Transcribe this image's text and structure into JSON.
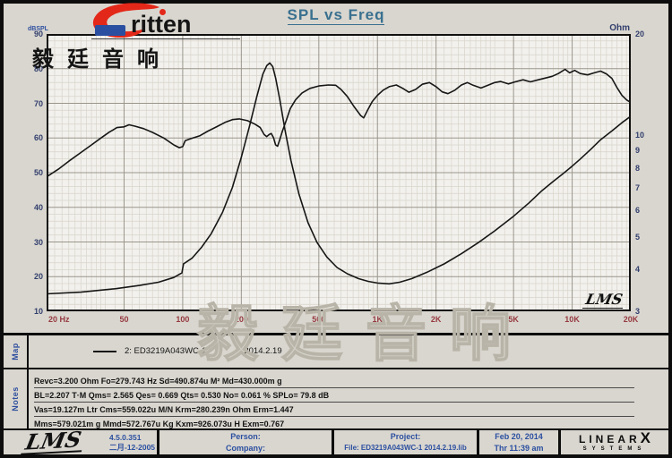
{
  "title": "SPL vs Freq",
  "logo": {
    "brand": "ritten",
    "cn": "毅廷音响"
  },
  "watermark": "毅廷音响",
  "plot_logo": "LMS",
  "chart_data": {
    "type": "line",
    "title": "SPL vs Freq",
    "x_axis": {
      "scale": "log",
      "min": 20,
      "max": 20000,
      "unit": "Hz",
      "ticks": [
        {
          "v": 20,
          "label": "20 Hz"
        },
        {
          "v": 50,
          "label": "50"
        },
        {
          "v": 100,
          "label": "100"
        },
        {
          "v": 200,
          "label": "200"
        },
        {
          "v": 500,
          "label": "500"
        },
        {
          "v": 1000,
          "label": "1K"
        },
        {
          "v": 2000,
          "label": "2K"
        },
        {
          "v": 5000,
          "label": "5K"
        },
        {
          "v": 10000,
          "label": "10K"
        },
        {
          "v": 20000,
          "label": "20K"
        }
      ]
    },
    "y_left": {
      "label": "dBSPL",
      "scale": "linear",
      "min": 10,
      "max": 90,
      "major_step": 10,
      "minor_step": 2,
      "ticks": [
        90,
        80,
        70,
        60,
        50,
        40,
        30,
        20,
        10
      ]
    },
    "y_right": {
      "label": "Ohm",
      "scale": "log",
      "min": 3,
      "max": 20,
      "ticks": [
        20,
        10,
        9,
        8,
        7,
        6,
        5,
        4,
        3
      ]
    },
    "grid": true,
    "legend": {
      "position": "map-panel",
      "entries": [
        "2: ED3219A043WC-1  2014.2.19"
      ]
    },
    "series": [
      {
        "name": "SPL",
        "axis": "left",
        "color": "#161616",
        "points": [
          [
            20,
            48.8
          ],
          [
            23,
            51
          ],
          [
            26,
            53.3
          ],
          [
            30,
            55.8
          ],
          [
            34,
            58
          ],
          [
            38,
            60
          ],
          [
            42,
            61.7
          ],
          [
            46,
            63
          ],
          [
            50,
            63.2
          ],
          [
            53,
            63.8
          ],
          [
            57,
            63.4
          ],
          [
            63,
            62.7
          ],
          [
            70,
            61.6
          ],
          [
            80,
            60
          ],
          [
            90,
            58
          ],
          [
            96,
            57.2
          ],
          [
            100,
            57.5
          ],
          [
            103,
            59.2
          ],
          [
            110,
            59.8
          ],
          [
            122,
            60.6
          ],
          [
            135,
            62
          ],
          [
            150,
            63.3
          ],
          [
            165,
            64.5
          ],
          [
            180,
            65.3
          ],
          [
            195,
            65.5
          ],
          [
            215,
            65
          ],
          [
            235,
            64
          ],
          [
            250,
            63
          ],
          [
            262,
            61
          ],
          [
            270,
            60.4
          ],
          [
            278,
            61
          ],
          [
            285,
            61.3
          ],
          [
            293,
            60
          ],
          [
            300,
            58
          ],
          [
            307,
            57.6
          ],
          [
            315,
            59.5
          ],
          [
            325,
            62
          ],
          [
            340,
            65
          ],
          [
            357,
            68.5
          ],
          [
            380,
            71
          ],
          [
            410,
            73
          ],
          [
            450,
            74.3
          ],
          [
            500,
            75
          ],
          [
            560,
            75.3
          ],
          [
            610,
            75.2
          ],
          [
            650,
            74
          ],
          [
            700,
            72
          ],
          [
            760,
            69
          ],
          [
            820,
            66.5
          ],
          [
            850,
            65.8
          ],
          [
            890,
            68
          ],
          [
            940,
            70.5
          ],
          [
            1000,
            72.3
          ],
          [
            1070,
            73.8
          ],
          [
            1150,
            74.8
          ],
          [
            1250,
            75.3
          ],
          [
            1350,
            74.3
          ],
          [
            1450,
            73.2
          ],
          [
            1570,
            74
          ],
          [
            1700,
            75.5
          ],
          [
            1850,
            76
          ],
          [
            2000,
            74.8
          ],
          [
            2150,
            73.3
          ],
          [
            2300,
            72.8
          ],
          [
            2500,
            73.8
          ],
          [
            2700,
            75.3
          ],
          [
            2900,
            76
          ],
          [
            3100,
            75.2
          ],
          [
            3400,
            74.4
          ],
          [
            3700,
            75.2
          ],
          [
            4000,
            76
          ],
          [
            4300,
            76.3
          ],
          [
            4700,
            75.6
          ],
          [
            5100,
            76.2
          ],
          [
            5600,
            76.8
          ],
          [
            6100,
            76.2
          ],
          [
            6700,
            76.8
          ],
          [
            7300,
            77.3
          ],
          [
            7900,
            77.8
          ],
          [
            8500,
            78.6
          ],
          [
            9200,
            79.8
          ],
          [
            9700,
            78.8
          ],
          [
            10300,
            79.5
          ],
          [
            11000,
            78.6
          ],
          [
            12000,
            78.2
          ],
          [
            13000,
            78.8
          ],
          [
            14000,
            79.3
          ],
          [
            15000,
            78.5
          ],
          [
            16000,
            77.2
          ],
          [
            17000,
            74.5
          ],
          [
            18000,
            72.3
          ],
          [
            19000,
            71
          ],
          [
            20000,
            70.2
          ]
        ]
      },
      {
        "name": "Impedance",
        "axis": "right",
        "color": "#161616",
        "points": [
          [
            20,
            3.38
          ],
          [
            30,
            3.42
          ],
          [
            45,
            3.5
          ],
          [
            60,
            3.58
          ],
          [
            75,
            3.66
          ],
          [
            90,
            3.78
          ],
          [
            99,
            3.9
          ],
          [
            101,
            4.15
          ],
          [
            112,
            4.32
          ],
          [
            125,
            4.65
          ],
          [
            140,
            5.1
          ],
          [
            160,
            5.9
          ],
          [
            180,
            7
          ],
          [
            200,
            8.6
          ],
          [
            220,
            10.6
          ],
          [
            240,
            13
          ],
          [
            258,
            15.2
          ],
          [
            270,
            16.1
          ],
          [
            280,
            16.4
          ],
          [
            290,
            16
          ],
          [
            300,
            14.8
          ],
          [
            315,
            12.8
          ],
          [
            335,
            10.4
          ],
          [
            360,
            8.4
          ],
          [
            395,
            6.7
          ],
          [
            440,
            5.5
          ],
          [
            490,
            4.8
          ],
          [
            550,
            4.35
          ],
          [
            620,
            4.05
          ],
          [
            700,
            3.88
          ],
          [
            800,
            3.75
          ],
          [
            900,
            3.68
          ],
          [
            1000,
            3.64
          ],
          [
            1150,
            3.62
          ],
          [
            1300,
            3.66
          ],
          [
            1500,
            3.75
          ],
          [
            1800,
            3.92
          ],
          [
            2200,
            4.15
          ],
          [
            2700,
            4.45
          ],
          [
            3300,
            4.8
          ],
          [
            4000,
            5.2
          ],
          [
            5000,
            5.75
          ],
          [
            6000,
            6.3
          ],
          [
            7000,
            6.85
          ],
          [
            8000,
            7.3
          ],
          [
            9000,
            7.7
          ],
          [
            10000,
            8.1
          ],
          [
            11000,
            8.5
          ],
          [
            12500,
            9.1
          ],
          [
            14000,
            9.7
          ],
          [
            16000,
            10.3
          ],
          [
            18000,
            10.9
          ],
          [
            20000,
            11.4
          ]
        ]
      }
    ]
  },
  "map_panel": {
    "tab": "Map",
    "legend_name": "2: ED3219A043WC-1",
    "legend_date": "2014.2.19"
  },
  "notes_panel": {
    "tab": "Notes",
    "lines": [
      "Revc=3.200 Ohm  Fo=279.743 Hz  Sd=490.874u M²  Md=430.000m g",
      "BL=2.207 T·M  Qms= 2.565  Qes= 0.669  Qts= 0.530  No= 0.061 %  SPLo= 79.8 dB",
      "Vas=19.127m Ltr  Cms=559.022u M/N  Krm=280.239n Ohm  Erm=1.447",
      "Mms=579.021m g  Mmd=572.767u Kg  Kxm=926.073u H  Exm=0.767"
    ]
  },
  "footer": {
    "lms": "LMS",
    "version": "4.5.0.351",
    "version_date": "二月-12-2005",
    "person_label": "Person:",
    "company_label": "Company:",
    "project_label": "Project:",
    "file_line": "File: ED3219A043WC-1  2014.2.19.lib",
    "date": "Feb 20, 2014",
    "time": "Thr 11:39 am",
    "brand_main": "LINEAR",
    "brand_x": "X",
    "brand_sub": "SYSTEMS"
  },
  "colors": {
    "title": "#39708f",
    "axis_left": "#323f6d",
    "axis_bottom": "#963a40",
    "panel_label": "#2e4f9e",
    "curve": "#161616",
    "grid_major": "#9a968b",
    "grid_minor": "#d8d4ca",
    "swoosh_red": "#e32819",
    "badge_blue": "#2b4fa0"
  }
}
